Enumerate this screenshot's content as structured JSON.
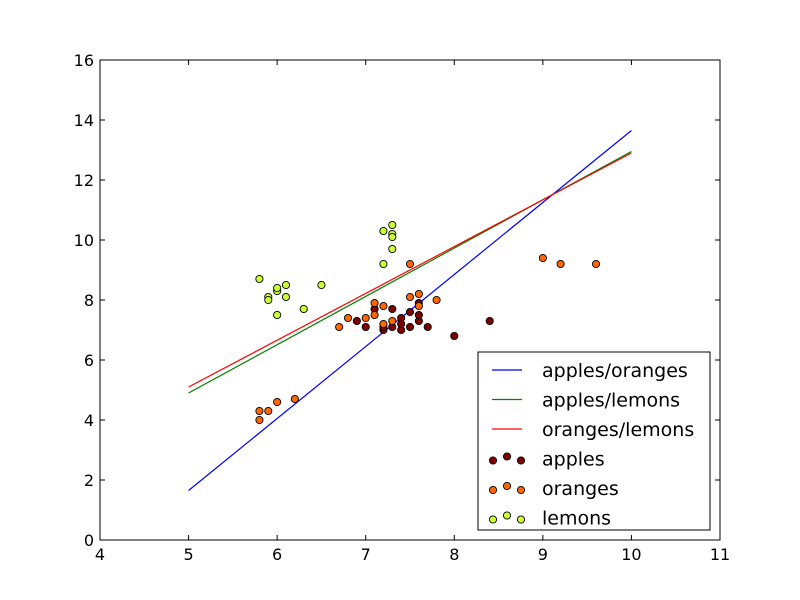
{
  "chart_data": {
    "type": "scatter",
    "title": "",
    "xlabel": "",
    "ylabel": "",
    "xlim": [
      4,
      11
    ],
    "ylim": [
      0,
      16
    ],
    "xticks": [
      4,
      5,
      6,
      7,
      8,
      9,
      10,
      11
    ],
    "yticks": [
      0,
      2,
      4,
      6,
      8,
      10,
      12,
      14,
      16
    ],
    "grid": false,
    "legend_position": "bottom-right",
    "lines": [
      {
        "name": "apples/oranges",
        "color": "#0000ff",
        "x": [
          5,
          10
        ],
        "y": [
          1.65,
          13.65
        ]
      },
      {
        "name": "apples/lemons",
        "color": "#008000",
        "x": [
          5,
          10
        ],
        "y": [
          4.9,
          12.95
        ]
      },
      {
        "name": "oranges/lemons",
        "color": "#ff0000",
        "x": [
          5,
          10
        ],
        "y": [
          5.1,
          12.9
        ]
      }
    ],
    "series": [
      {
        "name": "apples",
        "color": "#800000",
        "points": [
          [
            7.1,
            7.7
          ],
          [
            7.0,
            7.1
          ],
          [
            6.9,
            7.3
          ],
          [
            7.2,
            7.0
          ],
          [
            7.3,
            7.1
          ],
          [
            7.4,
            7.0
          ],
          [
            7.4,
            7.2
          ],
          [
            7.5,
            7.1
          ],
          [
            7.6,
            7.3
          ],
          [
            7.6,
            7.5
          ],
          [
            7.7,
            7.1
          ],
          [
            7.3,
            7.7
          ],
          [
            7.4,
            7.4
          ],
          [
            7.5,
            7.6
          ],
          [
            7.6,
            7.9
          ],
          [
            8.0,
            6.8
          ],
          [
            8.4,
            7.3
          ],
          [
            7.2,
            7.1
          ]
        ]
      },
      {
        "name": "oranges",
        "color": "#ff6600",
        "points": [
          [
            5.8,
            4.3
          ],
          [
            5.8,
            4.0
          ],
          [
            5.9,
            4.3
          ],
          [
            6.0,
            4.6
          ],
          [
            6.2,
            4.7
          ],
          [
            6.7,
            7.1
          ],
          [
            6.8,
            7.4
          ],
          [
            7.0,
            7.4
          ],
          [
            7.1,
            7.5
          ],
          [
            7.1,
            7.9
          ],
          [
            7.2,
            7.8
          ],
          [
            7.2,
            7.2
          ],
          [
            7.3,
            7.3
          ],
          [
            7.5,
            8.1
          ],
          [
            7.6,
            8.2
          ],
          [
            7.6,
            7.8
          ],
          [
            7.8,
            8.0
          ],
          [
            7.5,
            9.2
          ],
          [
            9.0,
            9.4
          ],
          [
            9.2,
            9.2
          ],
          [
            9.6,
            9.2
          ]
        ]
      },
      {
        "name": "lemons",
        "color": "#ccff33",
        "points": [
          [
            5.8,
            8.7
          ],
          [
            5.9,
            8.1
          ],
          [
            5.9,
            8.0
          ],
          [
            6.0,
            8.3
          ],
          [
            6.0,
            8.4
          ],
          [
            6.0,
            7.5
          ],
          [
            6.1,
            8.5
          ],
          [
            6.1,
            8.1
          ],
          [
            6.3,
            7.7
          ],
          [
            6.5,
            8.5
          ],
          [
            7.2,
            10.3
          ],
          [
            7.3,
            10.5
          ],
          [
            7.3,
            10.2
          ],
          [
            7.3,
            10.1
          ],
          [
            7.3,
            9.7
          ],
          [
            7.2,
            9.2
          ]
        ]
      }
    ]
  }
}
